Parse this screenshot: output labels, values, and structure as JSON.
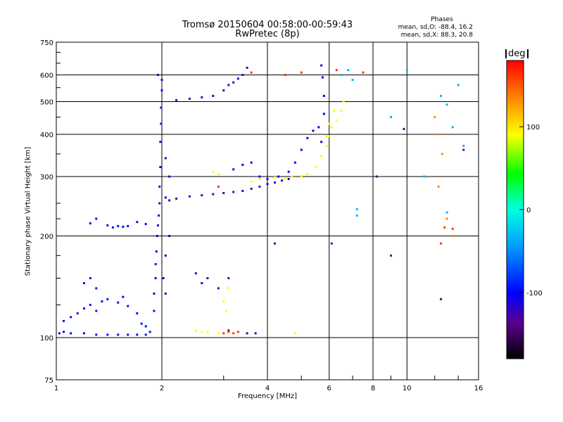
{
  "header": {
    "title_line1": "Tromsø 20150604 00:58:00-00:59:43",
    "title_line2": "RwPretec (8p)",
    "stats_head": "Phases",
    "stats_o": "mean, sd,O: -88.4, 16.2",
    "stats_x": "mean, sd,X: 88.3, 20.8"
  },
  "colorbar": {
    "unit": "deg",
    "ticks": [
      "100",
      "0",
      "-100"
    ],
    "tick_values": [
      100,
      0,
      -100
    ],
    "range": [
      -180,
      180
    ]
  },
  "chart_data": {
    "type": "scatter",
    "title": "Tromsø 20150604 00:58:00-00:59:43 RwPretec (8p)",
    "xlabel": "Frequency [MHz]",
    "ylabel": "Stationary phase Virtual Height [km]",
    "xscale": "log",
    "yscale": "log",
    "xlim": [
      1,
      16
    ],
    "ylim": [
      75,
      750
    ],
    "xticks": [
      1,
      2,
      4,
      6,
      8,
      10,
      16
    ],
    "xtick_labels": [
      "1",
      "2",
      "4",
      "6",
      "8",
      "10",
      "16"
    ],
    "yticks": [
      75,
      100,
      200,
      300,
      400,
      500,
      600,
      750
    ],
    "ytick_labels": [
      "75",
      "100",
      "200",
      "300",
      "400",
      "500",
      "600",
      "750"
    ],
    "grid": true,
    "colorbar_label": "deg",
    "series": [
      {
        "points": [
          [
            1.02,
            103
          ],
          [
            1.05,
            104
          ],
          [
            1.1,
            103
          ],
          [
            1.2,
            103
          ],
          [
            1.3,
            102
          ],
          [
            1.4,
            102
          ],
          [
            1.5,
            102
          ],
          [
            1.6,
            102
          ],
          [
            1.7,
            102
          ],
          [
            1.8,
            102
          ],
          [
            1.85,
            104
          ],
          [
            1.05,
            112
          ],
          [
            1.1,
            115
          ],
          [
            1.15,
            118
          ],
          [
            1.2,
            122
          ],
          [
            1.25,
            125
          ],
          [
            1.3,
            120
          ],
          [
            1.35,
            128
          ],
          [
            1.4,
            130
          ],
          [
            1.5,
            127
          ],
          [
            1.55,
            132
          ],
          [
            1.6,
            124
          ],
          [
            1.7,
            118
          ],
          [
            1.75,
            110
          ],
          [
            1.8,
            108
          ],
          [
            1.2,
            145
          ],
          [
            1.25,
            150
          ],
          [
            1.3,
            140
          ],
          [
            1.4,
            215
          ],
          [
            1.45,
            212
          ],
          [
            1.5,
            214
          ],
          [
            1.55,
            213
          ],
          [
            1.6,
            214
          ],
          [
            1.25,
            218
          ],
          [
            1.3,
            225
          ],
          [
            1.7,
            220
          ],
          [
            1.8,
            217
          ]
        ],
        "phase": -95
      },
      {
        "points": [
          [
            1.9,
            120
          ],
          [
            1.9,
            135
          ],
          [
            1.92,
            150
          ],
          [
            1.92,
            165
          ],
          [
            1.93,
            180
          ],
          [
            1.94,
            200
          ],
          [
            1.95,
            215
          ],
          [
            1.96,
            230
          ],
          [
            1.97,
            250
          ],
          [
            1.97,
            280
          ],
          [
            1.98,
            320
          ],
          [
            1.98,
            380
          ],
          [
            1.99,
            430
          ],
          [
            1.99,
            480
          ],
          [
            2.0,
            540
          ],
          [
            2.0,
            580
          ],
          [
            1.95,
            600
          ],
          [
            2.02,
            150
          ],
          [
            2.05,
            135
          ],
          [
            2.05,
            175
          ],
          [
            2.1,
            200
          ],
          [
            2.05,
            260
          ],
          [
            2.1,
            300
          ],
          [
            2.05,
            340
          ]
        ],
        "phase": -110
      },
      {
        "points": [
          [
            2.1,
            255
          ],
          [
            2.2,
            258
          ],
          [
            2.4,
            262
          ],
          [
            2.6,
            264
          ],
          [
            2.8,
            266
          ],
          [
            3.0,
            268
          ],
          [
            3.2,
            270
          ],
          [
            3.4,
            272
          ],
          [
            3.6,
            276
          ],
          [
            3.8,
            280
          ],
          [
            4.0,
            285
          ],
          [
            4.2,
            288
          ],
          [
            4.4,
            292
          ],
          [
            4.6,
            295
          ],
          [
            2.2,
            505
          ],
          [
            2.4,
            510
          ],
          [
            2.6,
            515
          ],
          [
            2.8,
            520
          ],
          [
            3.0,
            540
          ],
          [
            3.2,
            570
          ],
          [
            3.4,
            600
          ],
          [
            3.5,
            630
          ],
          [
            3.3,
            585
          ],
          [
            3.1,
            560
          ],
          [
            2.5,
            155
          ],
          [
            2.6,
            145
          ],
          [
            2.7,
            150
          ],
          [
            2.9,
            140
          ],
          [
            3.1,
            150
          ],
          [
            3.5,
            103
          ],
          [
            3.7,
            103
          ],
          [
            3.1,
            105
          ]
        ],
        "phase": -120
      },
      {
        "points": [
          [
            3.6,
            330
          ],
          [
            3.4,
            325
          ],
          [
            3.2,
            315
          ],
          [
            3.8,
            300
          ],
          [
            4.0,
            295
          ],
          [
            4.3,
            300
          ],
          [
            4.6,
            310
          ],
          [
            4.8,
            330
          ],
          [
            5.0,
            360
          ],
          [
            5.2,
            390
          ],
          [
            5.4,
            410
          ],
          [
            5.6,
            420
          ],
          [
            5.7,
            380
          ],
          [
            5.8,
            460
          ],
          [
            5.8,
            520
          ],
          [
            5.75,
            590
          ],
          [
            5.7,
            640
          ]
        ],
        "phase": -100
      },
      {
        "points": [
          [
            2.5,
            105
          ],
          [
            2.6,
            104
          ],
          [
            2.7,
            104
          ],
          [
            2.9,
            103
          ],
          [
            3.0,
            103
          ],
          [
            3.1,
            104
          ],
          [
            3.0,
            128
          ],
          [
            3.05,
            120
          ],
          [
            3.1,
            140
          ],
          [
            3.6,
            290
          ],
          [
            3.8,
            295
          ],
          [
            4.2,
            298
          ],
          [
            4.5,
            296
          ],
          [
            4.7,
            300
          ],
          [
            5.0,
            302
          ],
          [
            5.2,
            305
          ],
          [
            5.5,
            320
          ],
          [
            5.7,
            345
          ],
          [
            5.9,
            370
          ],
          [
            6.0,
            395
          ],
          [
            6.1,
            420
          ],
          [
            6.3,
            440
          ],
          [
            6.5,
            470
          ],
          [
            6.6,
            500
          ],
          [
            6.2,
            470
          ],
          [
            6.0,
            430
          ],
          [
            5.9,
            395
          ],
          [
            4.8,
            103
          ],
          [
            5.0,
            300
          ],
          [
            2.8,
            310
          ],
          [
            2.9,
            305
          ]
        ],
        "phase": 90
      },
      {
        "points": [
          [
            3.0,
            103
          ],
          [
            3.1,
            104
          ],
          [
            3.2,
            103
          ],
          [
            3.3,
            104
          ],
          [
            2.9,
            280
          ],
          [
            3.6,
            610
          ],
          [
            4.5,
            600
          ],
          [
            5.0,
            610
          ],
          [
            6.3,
            620
          ],
          [
            7.5,
            610
          ],
          [
            12.5,
            190
          ],
          [
            12.8,
            212
          ],
          [
            13.5,
            210
          ]
        ],
        "phase": 160
      },
      {
        "points": [
          [
            6.5,
            600
          ],
          [
            7.0,
            580
          ],
          [
            6.8,
            620
          ],
          [
            9.0,
            450
          ],
          [
            10.0,
            620
          ],
          [
            12.5,
            520
          ],
          [
            13.0,
            490
          ],
          [
            13.5,
            420
          ],
          [
            14.0,
            560
          ],
          [
            14.5,
            370
          ],
          [
            13.0,
            235
          ],
          [
            7.2,
            240
          ],
          [
            7.2,
            230
          ],
          [
            11.2,
            300
          ]
        ],
        "phase": -30
      },
      {
        "points": [
          [
            4.2,
            190
          ],
          [
            6.1,
            190
          ],
          [
            9.0,
            175
          ],
          [
            14.5,
            360
          ],
          [
            12.5,
            130
          ],
          [
            9.8,
            415
          ],
          [
            8.2,
            300
          ]
        ],
        "phase": -140
      },
      {
        "points": [
          [
            12.3,
            280
          ],
          [
            13.0,
            225
          ],
          [
            12.6,
            350
          ],
          [
            12.0,
            450
          ],
          [
            12.2,
            400
          ],
          [
            13.6,
            200
          ]
        ],
        "phase": 130
      }
    ]
  }
}
